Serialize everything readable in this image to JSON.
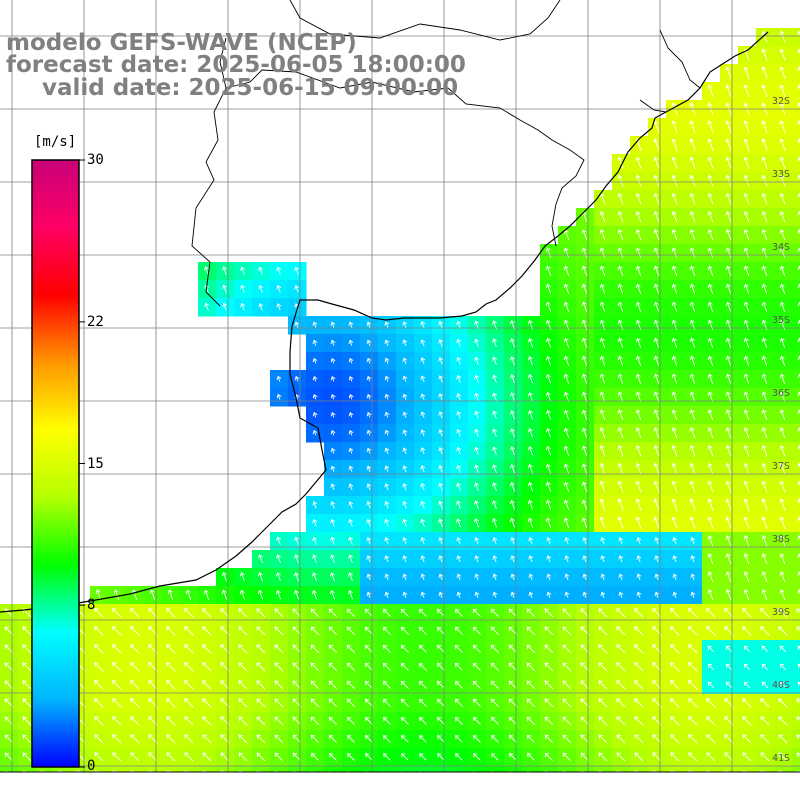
{
  "title": {
    "model": "modelo GEFS-WAVE (NCEP)",
    "forecast": "forecast date: 2025-06-05 18:00:00",
    "valid": "valid date: 2025-06-15 09:00:00"
  },
  "colorbar": {
    "unit": "[m/s]",
    "ticks": [
      {
        "value": 30,
        "label": "30"
      },
      {
        "value": 22,
        "label": "22"
      },
      {
        "value": 15,
        "label": "15"
      },
      {
        "value": 8,
        "label": "8"
      },
      {
        "value": 0,
        "label": "0"
      }
    ],
    "range": [
      0,
      30
    ],
    "colors": [
      "#0000ff",
      "#00b4ff",
      "#00ffff",
      "#00ff00",
      "#b4ff00",
      "#ffff00",
      "#ff9600",
      "#ff0000",
      "#ff0064",
      "#c80078"
    ]
  },
  "map": {
    "land_color": "#ffffff",
    "grid": true,
    "arrow_color": "#ffffff",
    "latitude_labels": [
      "32S",
      "33S",
      "34S",
      "35S",
      "36S",
      "37S",
      "38S",
      "39S",
      "40S",
      "41S"
    ]
  }
}
